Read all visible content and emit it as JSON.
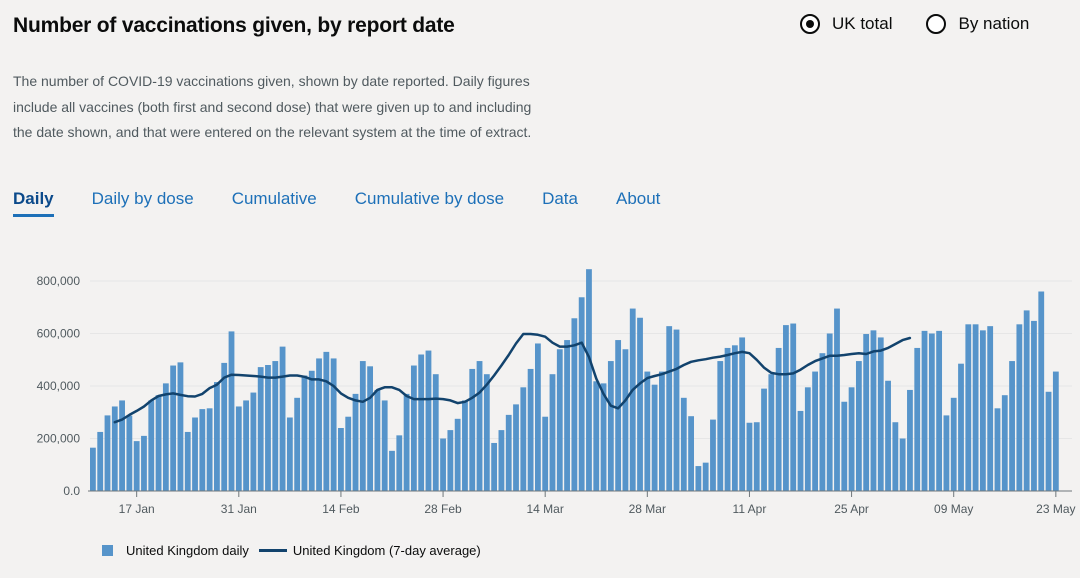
{
  "header": {
    "title": "Number of vaccinations given, by report date",
    "radio_uk": "UK total",
    "radio_nation": "By nation",
    "selected": "UK total"
  },
  "description": "The number of COVID-19 vaccinations given, shown by date reported. Daily figures include all vaccines (both first and second dose) that were given up to and including the date shown, and that were entered on the relevant system at the time of extract.",
  "tabs": [
    {
      "label": "Daily",
      "active": true
    },
    {
      "label": "Daily by dose",
      "active": false
    },
    {
      "label": "Cumulative",
      "active": false
    },
    {
      "label": "Cumulative by dose",
      "active": false
    },
    {
      "label": "Data",
      "active": false
    },
    {
      "label": "About",
      "active": false
    }
  ],
  "colors": {
    "bar": "#5694ca",
    "line": "#12436d",
    "axis": "#6f777b",
    "grid": "#e6e6e6",
    "accent": "#1d70b8"
  },
  "chart_data": {
    "type": "bar",
    "title": "Number of vaccinations given, by report date",
    "start_date": "11 Jan",
    "ylim": [
      0,
      800000
    ],
    "y_ticks": [
      "0.0",
      "200,000",
      "400,000",
      "600,000",
      "800,000"
    ],
    "y_tick_values": [
      0,
      200000,
      400000,
      600000,
      800000
    ],
    "x_ticks": [
      {
        "label": "17 Jan",
        "index": 6
      },
      {
        "label": "31 Jan",
        "index": 20
      },
      {
        "label": "14 Feb",
        "index": 34
      },
      {
        "label": "28 Feb",
        "index": 48
      },
      {
        "label": "14 Mar",
        "index": 62
      },
      {
        "label": "28 Mar",
        "index": 76
      },
      {
        "label": "11 Apr",
        "index": 90
      },
      {
        "label": "25 Apr",
        "index": 104
      },
      {
        "label": "09 May",
        "index": 118
      },
      {
        "label": "23 May",
        "index": 132
      }
    ],
    "series": [
      {
        "name": "United Kingdom daily",
        "kind": "bar",
        "values": [
          165000,
          225000,
          288000,
          322000,
          345000,
          287000,
          190000,
          210000,
          345000,
          365000,
          410000,
          478000,
          490000,
          225000,
          280000,
          312000,
          315000,
          415000,
          488000,
          608000,
          322000,
          345000,
          375000,
          472000,
          480000,
          495000,
          550000,
          280000,
          355000,
          440000,
          458000,
          505000,
          530000,
          505000,
          240000,
          283000,
          370000,
          495000,
          475000,
          385000,
          345000,
          153000,
          212000,
          370000,
          478000,
          520000,
          535000,
          445000,
          200000,
          232000,
          275000,
          345000,
          465000,
          495000,
          445000,
          183000,
          232000,
          290000,
          330000,
          395000,
          465000,
          562000,
          283000,
          445000,
          540000,
          575000,
          658000,
          738000,
          845000,
          418000,
          410000,
          495000,
          575000,
          540000,
          695000,
          660000,
          455000,
          405000,
          455000,
          628000,
          615000,
          355000,
          285000,
          95000,
          108000,
          272000,
          495000,
          545000,
          555000,
          585000,
          260000,
          262000,
          390000,
          445000,
          545000,
          632000,
          638000,
          305000,
          395000,
          455000,
          525000,
          600000,
          695000,
          340000,
          395000,
          495000,
          598000,
          612000,
          585000,
          420000,
          262000,
          200000,
          385000,
          545000,
          610000,
          600000,
          610000,
          288000,
          355000,
          485000,
          635000,
          635000,
          612000,
          628000,
          315000,
          365000,
          495000,
          635000,
          688000,
          648000,
          760000,
          378000,
          455000
        ],
        "legend": "United Kingdom daily"
      },
      {
        "name": "United Kingdom (7-day average)",
        "kind": "line",
        "start_index": 3,
        "values": [
          262000,
          272000,
          290000,
          305000,
          322000,
          345000,
          362000,
          368000,
          372000,
          366000,
          361000,
          360000,
          370000,
          392000,
          405000,
          432000,
          443000,
          442000,
          440000,
          438000,
          436000,
          432000,
          432000,
          436000,
          440000,
          440000,
          435000,
          425000,
          425000,
          418000,
          400000,
          372000,
          355000,
          345000,
          340000,
          355000,
          385000,
          395000,
          395000,
          385000,
          362000,
          350000,
          350000,
          350000,
          352000,
          350000,
          345000,
          335000,
          340000,
          355000,
          375000,
          405000,
          440000,
          478000,
          518000,
          562000,
          598000,
          598000,
          595000,
          588000,
          565000,
          550000,
          550000,
          555000,
          565000,
          510000,
          428000,
          370000,
          325000,
          315000,
          345000,
          385000,
          410000,
          430000,
          438000,
          445000,
          455000,
          465000,
          480000,
          492000,
          498000,
          502000,
          508000,
          512000,
          518000,
          525000,
          530000,
          525000,
          500000,
          470000,
          450000,
          445000,
          445000,
          448000,
          462000,
          480000,
          495000,
          505000,
          515000,
          515000,
          518000,
          522000,
          525000,
          522000,
          532000,
          535000,
          545000,
          560000,
          575000,
          583000
        ],
        "legend": "United Kingdom (7-day average)"
      }
    ]
  }
}
